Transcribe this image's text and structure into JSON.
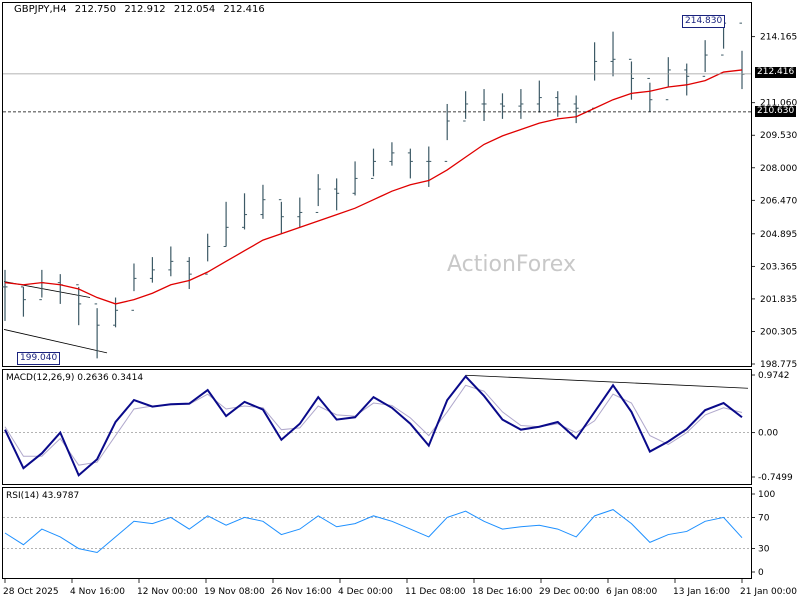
{
  "header": {
    "symbol": "GBPJPY,H4",
    "open": "212.750",
    "high": "212.912",
    "low": "212.054",
    "close": "212.416"
  },
  "watermark": "ActionForex",
  "colors": {
    "bars": "#3d5a66",
    "ma": "#e00000",
    "macd": "#0a0a8a",
    "signal": "#b0a8cc",
    "rsi": "#1e90ff",
    "grid": "#9a9a9a"
  },
  "price_labels": {
    "current": "212.416",
    "support": "210.630",
    "high_tag": "214.830",
    "low_tag": "199.040"
  },
  "macd_pane": {
    "title": "MACD(12,26,9) 0.2636 0.3414",
    "ticks": [
      "0.9742",
      "0.00",
      "-0.7499"
    ]
  },
  "rsi_pane": {
    "title": "RSI(14) 43.9787",
    "ticks": [
      "100",
      "70",
      "30",
      "0"
    ]
  },
  "chart_data": [
    {
      "type": "ohlc",
      "title": "GBPJPY,H4",
      "ylim": [
        198.775,
        215.7
      ],
      "y_ticks": [
        "214.165",
        "212.416",
        "211.060",
        "209.530",
        "208.000",
        "206.470",
        "204.895",
        "203.365",
        "201.835",
        "200.305",
        "198.775"
      ],
      "x_ticks": [
        "28 Oct 2025",
        "4 Nov 16:00",
        "12 Nov 00:00",
        "19 Nov 08:00",
        "26 Nov 16:00",
        "4 Dec 00:00",
        "11 Dec 08:00",
        "18 Dec 16:00",
        "29 Dec 00:00",
        "6 Jan 08:00",
        "13 Jan 16:00",
        "21 Jan 00:00"
      ],
      "x": [
        0,
        3,
        6,
        9,
        12,
        15,
        18,
        21,
        24,
        27,
        30,
        33,
        36,
        39,
        42,
        45,
        48,
        51,
        54,
        57,
        60,
        63,
        66,
        69,
        72,
        75,
        78,
        81,
        84,
        87,
        90,
        93,
        96,
        99,
        102,
        105,
        108,
        111,
        114,
        117,
        120
      ],
      "close": [
        202.4,
        201.8,
        202.6,
        202.5,
        201.6,
        200.6,
        201.3,
        202.8,
        203.2,
        203.6,
        203.0,
        204.3,
        205.2,
        205.8,
        206.5,
        205.7,
        205.9,
        207.0,
        206.8,
        207.5,
        208.3,
        208.7,
        208.3,
        208.3,
        210.2,
        211.0,
        211.0,
        210.9,
        211.0,
        211.3,
        211.0,
        210.8,
        213.0,
        213.1,
        212.2,
        211.2,
        212.6,
        212.3,
        213.3,
        214.8,
        212.4
      ],
      "high": [
        203.2,
        202.4,
        203.2,
        203.0,
        202.4,
        201.4,
        201.9,
        203.5,
        203.8,
        204.3,
        203.8,
        204.9,
        206.4,
        206.8,
        207.2,
        206.4,
        206.6,
        207.7,
        207.5,
        208.3,
        208.9,
        209.2,
        208.9,
        209.0,
        211.0,
        211.6,
        211.7,
        211.5,
        211.7,
        212.1,
        211.6,
        211.4,
        213.9,
        214.4,
        213.0,
        212.0,
        213.2,
        212.9,
        214.0,
        214.83,
        213.5
      ],
      "low": [
        200.8,
        201.0,
        201.9,
        201.6,
        200.6,
        199.04,
        200.5,
        202.2,
        202.6,
        202.9,
        202.3,
        203.6,
        204.3,
        205.1,
        205.6,
        204.9,
        205.2,
        206.2,
        206.0,
        206.7,
        207.6,
        208.1,
        207.5,
        207.1,
        209.3,
        210.3,
        210.2,
        210.3,
        210.3,
        210.6,
        210.4,
        210.1,
        212.1,
        212.3,
        211.2,
        210.63,
        211.8,
        211.4,
        212.5,
        213.6,
        211.7
      ],
      "ma": [
        202.6,
        202.5,
        202.6,
        202.5,
        202.3,
        201.9,
        201.6,
        201.8,
        202.1,
        202.5,
        202.7,
        203.1,
        203.6,
        204.1,
        204.6,
        204.9,
        205.2,
        205.5,
        205.8,
        206.1,
        206.5,
        206.9,
        207.2,
        207.4,
        207.9,
        208.5,
        209.1,
        209.5,
        209.8,
        210.1,
        210.3,
        210.4,
        210.8,
        211.2,
        211.5,
        211.6,
        211.8,
        211.9,
        212.1,
        212.5,
        212.6
      ],
      "horizontal_lines": [
        212.416,
        210.63
      ],
      "annotations": [
        "214.830",
        "199.040"
      ]
    },
    {
      "type": "line",
      "title": "MACD(12,26,9) 0.2636 0.3414",
      "ylim": [
        -0.75,
        0.9742
      ],
      "x": [
        0,
        3,
        6,
        9,
        12,
        15,
        18,
        21,
        24,
        27,
        30,
        33,
        36,
        39,
        42,
        45,
        48,
        51,
        54,
        57,
        60,
        63,
        66,
        69,
        72,
        75,
        78,
        81,
        84,
        87,
        90,
        93,
        96,
        99,
        102,
        105,
        108,
        111,
        114,
        117,
        120
      ],
      "series": [
        {
          "name": "MACD",
          "values": [
            0.05,
            -0.6,
            -0.35,
            0.0,
            -0.72,
            -0.45,
            0.18,
            0.55,
            0.44,
            0.48,
            0.49,
            0.72,
            0.28,
            0.52,
            0.39,
            -0.12,
            0.15,
            0.6,
            0.22,
            0.26,
            0.6,
            0.42,
            0.15,
            -0.22,
            0.55,
            0.95,
            0.62,
            0.22,
            0.05,
            0.1,
            0.18,
            -0.1,
            0.35,
            0.8,
            0.35,
            -0.32,
            -0.15,
            0.06,
            0.38,
            0.5,
            0.26
          ]
        },
        {
          "name": "Signal",
          "values": [
            0.1,
            -0.4,
            -0.4,
            -0.1,
            -0.55,
            -0.5,
            -0.05,
            0.4,
            0.45,
            0.47,
            0.48,
            0.65,
            0.4,
            0.45,
            0.42,
            0.05,
            0.08,
            0.45,
            0.3,
            0.28,
            0.5,
            0.46,
            0.25,
            -0.05,
            0.35,
            0.8,
            0.7,
            0.35,
            0.12,
            0.1,
            0.15,
            0.0,
            0.2,
            0.65,
            0.5,
            -0.05,
            -0.2,
            0.0,
            0.3,
            0.42,
            0.34
          ]
        }
      ]
    },
    {
      "type": "line",
      "title": "RSI(14) 43.9787",
      "ylim": [
        0,
        100
      ],
      "levels": [
        70,
        30
      ],
      "x": [
        0,
        3,
        6,
        9,
        12,
        15,
        18,
        21,
        24,
        27,
        30,
        33,
        36,
        39,
        42,
        45,
        48,
        51,
        54,
        57,
        60,
        63,
        66,
        69,
        72,
        75,
        78,
        81,
        84,
        87,
        90,
        93,
        96,
        99,
        102,
        105,
        108,
        111,
        114,
        117,
        120
      ],
      "series": [
        {
          "name": "RSI",
          "values": [
            50,
            35,
            55,
            45,
            30,
            25,
            45,
            65,
            62,
            70,
            55,
            72,
            60,
            70,
            65,
            48,
            55,
            72,
            58,
            62,
            72,
            65,
            55,
            45,
            70,
            78,
            65,
            55,
            58,
            60,
            55,
            45,
            72,
            80,
            62,
            38,
            48,
            52,
            65,
            70,
            44
          ]
        }
      ]
    }
  ]
}
